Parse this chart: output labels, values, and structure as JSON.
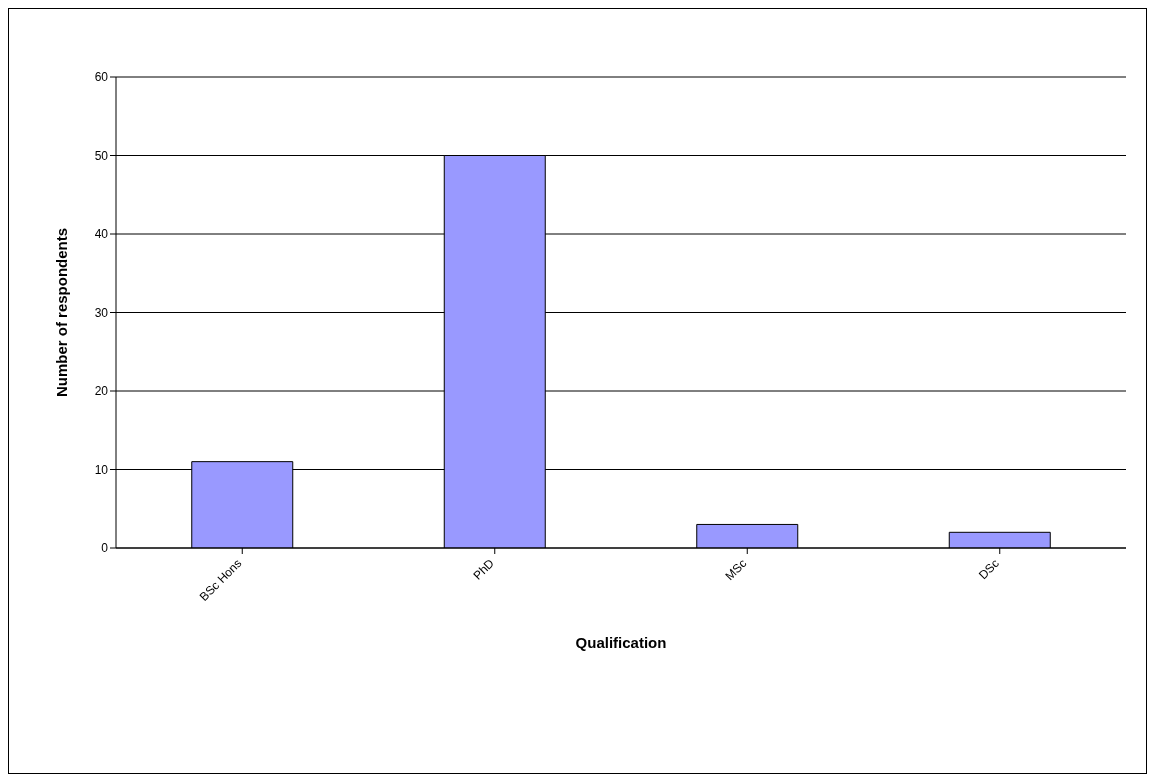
{
  "chart_data": {
    "type": "bar",
    "xlabel": "Qualification",
    "ylabel": "Number of respondents",
    "categories": [
      "BSc Hons",
      "PhD",
      "MSc",
      "DSc"
    ],
    "values": [
      11,
      50,
      3,
      2
    ],
    "color": "#9999ff",
    "ylim": [
      0,
      60
    ],
    "yticks": [
      0,
      10,
      20,
      30,
      40,
      50,
      60
    ],
    "grid": "y"
  }
}
